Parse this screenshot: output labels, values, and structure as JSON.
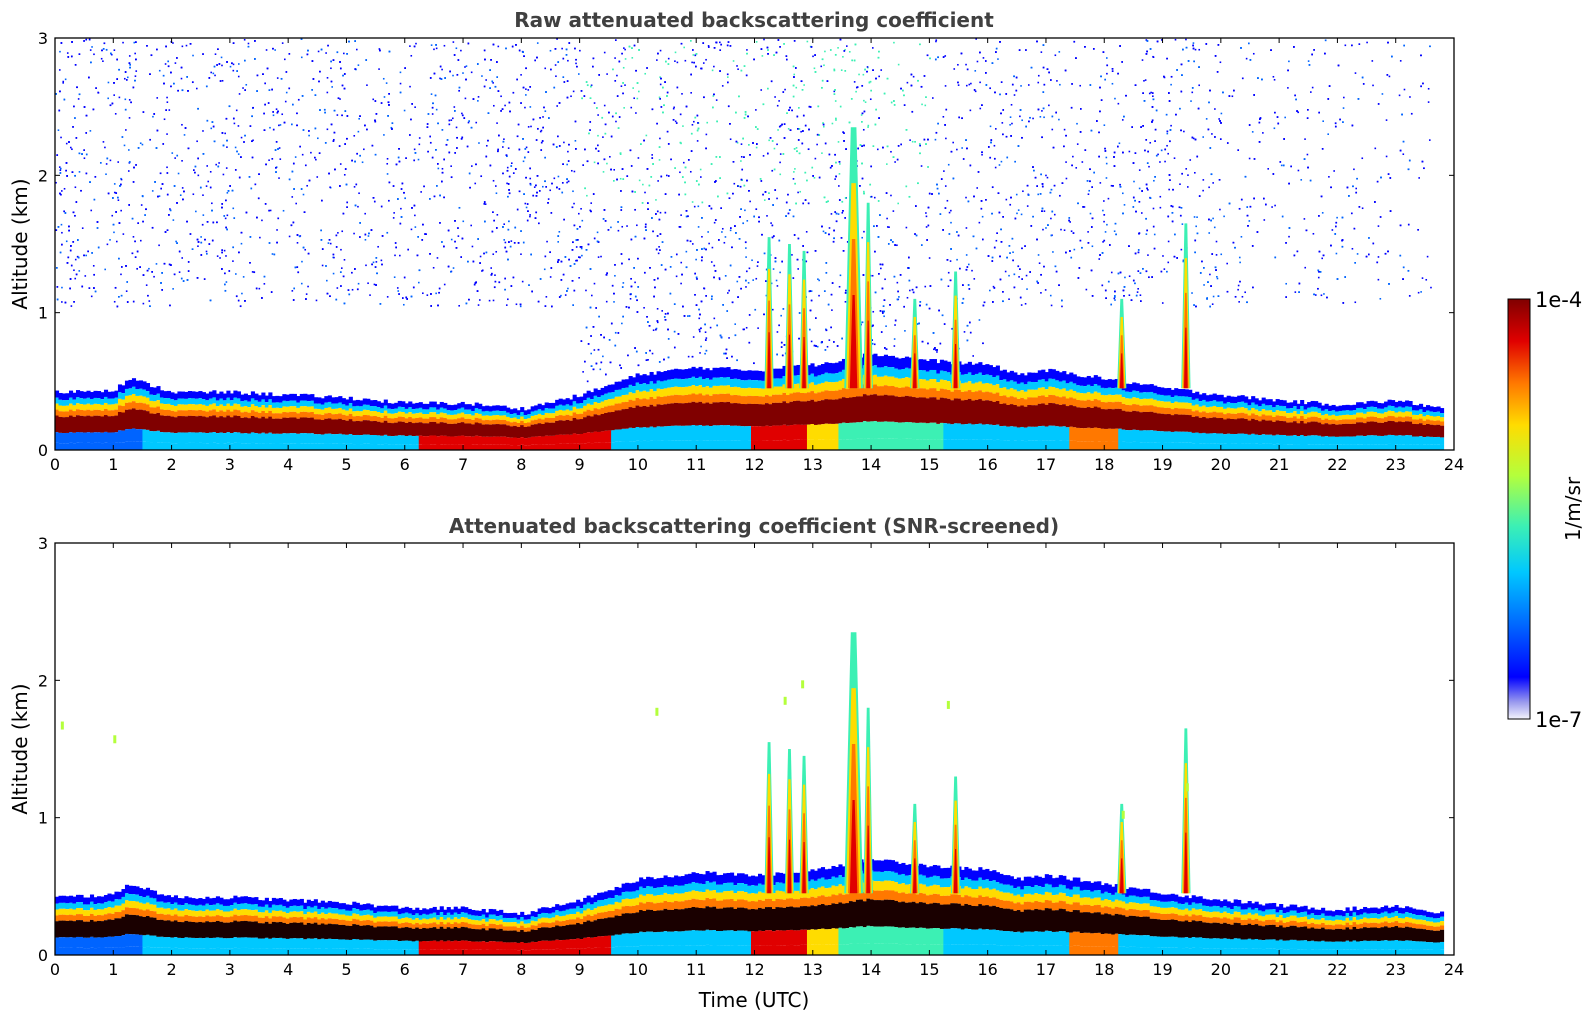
{
  "chart_data": [
    {
      "type": "heatmap",
      "title": "Raw attenuated backscattering coefficient",
      "xlabel": "",
      "ylabel": "Altitude (km)",
      "xlim": [
        0,
        24
      ],
      "ylim": [
        0,
        3
      ],
      "x_ticks": [
        "0",
        "1",
        "2",
        "3",
        "4",
        "5",
        "6",
        "7",
        "8",
        "9",
        "10",
        "11",
        "12",
        "13",
        "14",
        "15",
        "16",
        "17",
        "18",
        "19",
        "20",
        "21",
        "22",
        "23",
        "24"
      ],
      "y_ticks": [
        "0",
        "1",
        "2",
        "3"
      ],
      "layer_top_km": [
        {
          "t": 0,
          "h": 0.42
        },
        {
          "t": 1,
          "h": 0.44
        },
        {
          "t": 1.25,
          "h": 0.52
        },
        {
          "t": 2,
          "h": 0.42
        },
        {
          "t": 3,
          "h": 0.42
        },
        {
          "t": 4,
          "h": 0.4
        },
        {
          "t": 5,
          "h": 0.38
        },
        {
          "t": 6,
          "h": 0.34
        },
        {
          "t": 7,
          "h": 0.34
        },
        {
          "t": 8,
          "h": 0.3
        },
        {
          "t": 9,
          "h": 0.4
        },
        {
          "t": 10,
          "h": 0.55
        },
        {
          "t": 11,
          "h": 0.6
        },
        {
          "t": 12,
          "h": 0.58
        },
        {
          "t": 13,
          "h": 0.62
        },
        {
          "t": 14,
          "h": 0.7
        },
        {
          "t": 15,
          "h": 0.65
        },
        {
          "t": 16,
          "h": 0.62
        },
        {
          "t": 16.5,
          "h": 0.55
        },
        {
          "t": 17,
          "h": 0.58
        },
        {
          "t": 18,
          "h": 0.52
        },
        {
          "t": 19,
          "h": 0.45
        },
        {
          "t": 20,
          "h": 0.4
        },
        {
          "t": 21,
          "h": 0.36
        },
        {
          "t": 22,
          "h": 0.33
        },
        {
          "t": 23,
          "h": 0.36
        },
        {
          "t": 23.8,
          "h": 0.3
        }
      ],
      "plumes": [
        {
          "t": 12.25,
          "top_km": 1.55
        },
        {
          "t": 12.6,
          "top_km": 1.5
        },
        {
          "t": 12.85,
          "top_km": 1.45
        },
        {
          "t": 13.7,
          "top_km": 2.35
        },
        {
          "t": 13.95,
          "top_km": 1.8
        },
        {
          "t": 14.75,
          "top_km": 1.1
        },
        {
          "t": 15.45,
          "top_km": 1.3
        },
        {
          "t": 18.3,
          "top_km": 1.1
        },
        {
          "t": 19.4,
          "top_km": 1.65
        }
      ]
    },
    {
      "type": "heatmap",
      "title": "Attenuated backscattering coefficient (SNR-screened)",
      "xlabel": "Time (UTC)",
      "ylabel": "Altitude (km)",
      "xlim": [
        0,
        24
      ],
      "ylim": [
        0,
        3
      ],
      "x_ticks": [
        "0",
        "1",
        "2",
        "3",
        "4",
        "5",
        "6",
        "7",
        "8",
        "9",
        "10",
        "11",
        "12",
        "13",
        "14",
        "15",
        "16",
        "17",
        "18",
        "19",
        "20",
        "21",
        "22",
        "23",
        "24"
      ],
      "y_ticks": [
        "0",
        "1",
        "2",
        "3"
      ]
    }
  ],
  "colorbar": {
    "label": "1/m/sr",
    "max_label": "1e-4",
    "min_label": "1e-7",
    "colormap": [
      "#f4f4fc",
      "#9a9aee",
      "#0000ff",
      "#0064ff",
      "#00c8ff",
      "#3cf0b4",
      "#b4ff3c",
      "#ffdc00",
      "#ff7800",
      "#e00000",
      "#800000"
    ]
  }
}
